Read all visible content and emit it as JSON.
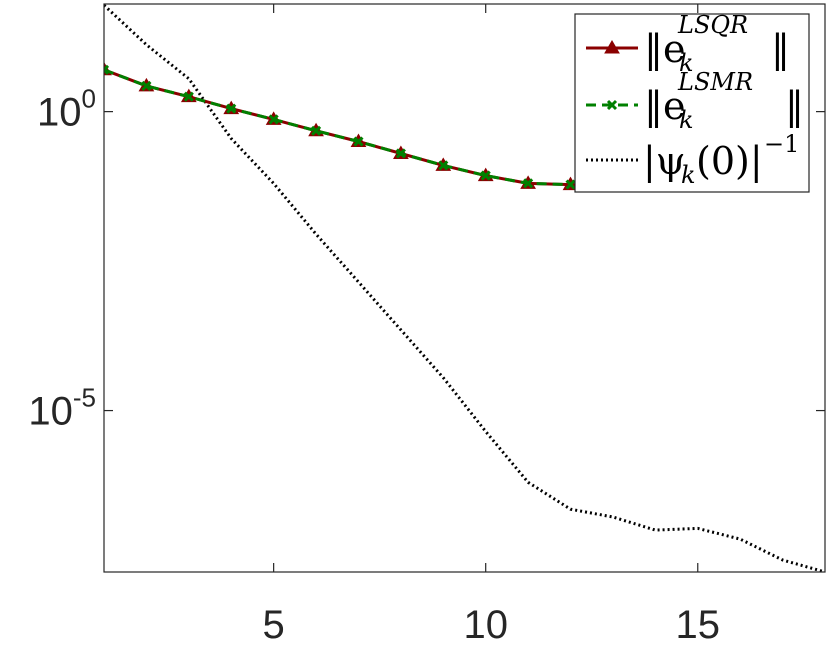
{
  "chart_data": {
    "type": "line",
    "title": "",
    "xlabel": "",
    "ylabel": "",
    "xlim": [
      1,
      18
    ],
    "ylim_log10": [
      -7.7,
      1.8
    ],
    "yscale": "log",
    "grid": false,
    "legend_placement": "top-right",
    "x_ticks": [
      5,
      10,
      15
    ],
    "x_tick_labels": [
      "5",
      "10",
      "15"
    ],
    "y_ticks_log10": [
      0,
      -5
    ],
    "y_tick_labels": [
      {
        "base": "10",
        "exp": "0"
      },
      {
        "base": "10",
        "exp": "-5"
      }
    ],
    "series": [
      {
        "name": "‖e_k^{LSQR}‖",
        "color": "#8b0000",
        "style": "solid",
        "marker": "triangle",
        "x": [
          1,
          2,
          3,
          4,
          5,
          6,
          7,
          8,
          9,
          10,
          11,
          12
        ],
        "y_log10": [
          0.7,
          0.43,
          0.25,
          0.05,
          -0.13,
          -0.32,
          -0.5,
          -0.7,
          -0.9,
          -1.07,
          -1.2,
          -1.22
        ]
      },
      {
        "name": "‖e_k^{LSMR}‖",
        "color": "#008000",
        "style": "dashed",
        "marker": "x",
        "x": [
          1,
          2,
          3,
          4,
          5,
          6,
          7,
          8,
          9,
          10,
          11,
          12
        ],
        "y_log10": [
          0.7,
          0.43,
          0.25,
          0.05,
          -0.13,
          -0.32,
          -0.5,
          -0.7,
          -0.9,
          -1.07,
          -1.2,
          -1.22
        ]
      },
      {
        "name": "|ψ_k(0)|^{-1}",
        "color": "#000000",
        "style": "dotted",
        "marker": "none",
        "x": [
          1,
          2,
          3,
          4,
          5,
          6,
          7,
          8,
          9,
          10,
          11,
          12,
          13,
          14,
          15,
          16,
          17,
          18
        ],
        "y_log10": [
          1.78,
          1.12,
          0.55,
          -0.45,
          -1.2,
          -2.05,
          -2.85,
          -3.65,
          -4.45,
          -5.35,
          -6.2,
          -6.65,
          -6.78,
          -7.0,
          -6.97,
          -7.15,
          -7.5,
          -7.7
        ]
      }
    ]
  },
  "legend": {
    "lsqr": {
      "open": "‖e",
      "sub": "k",
      "sup": "LSQR",
      "close": "‖"
    },
    "lsmr": {
      "open": "‖e",
      "sub": "k",
      "sup": "LSMR",
      "close": "‖"
    },
    "psi": {
      "open": "|ψ",
      "sub": "k",
      "mid": "(0)|",
      "sup": "−1"
    }
  }
}
